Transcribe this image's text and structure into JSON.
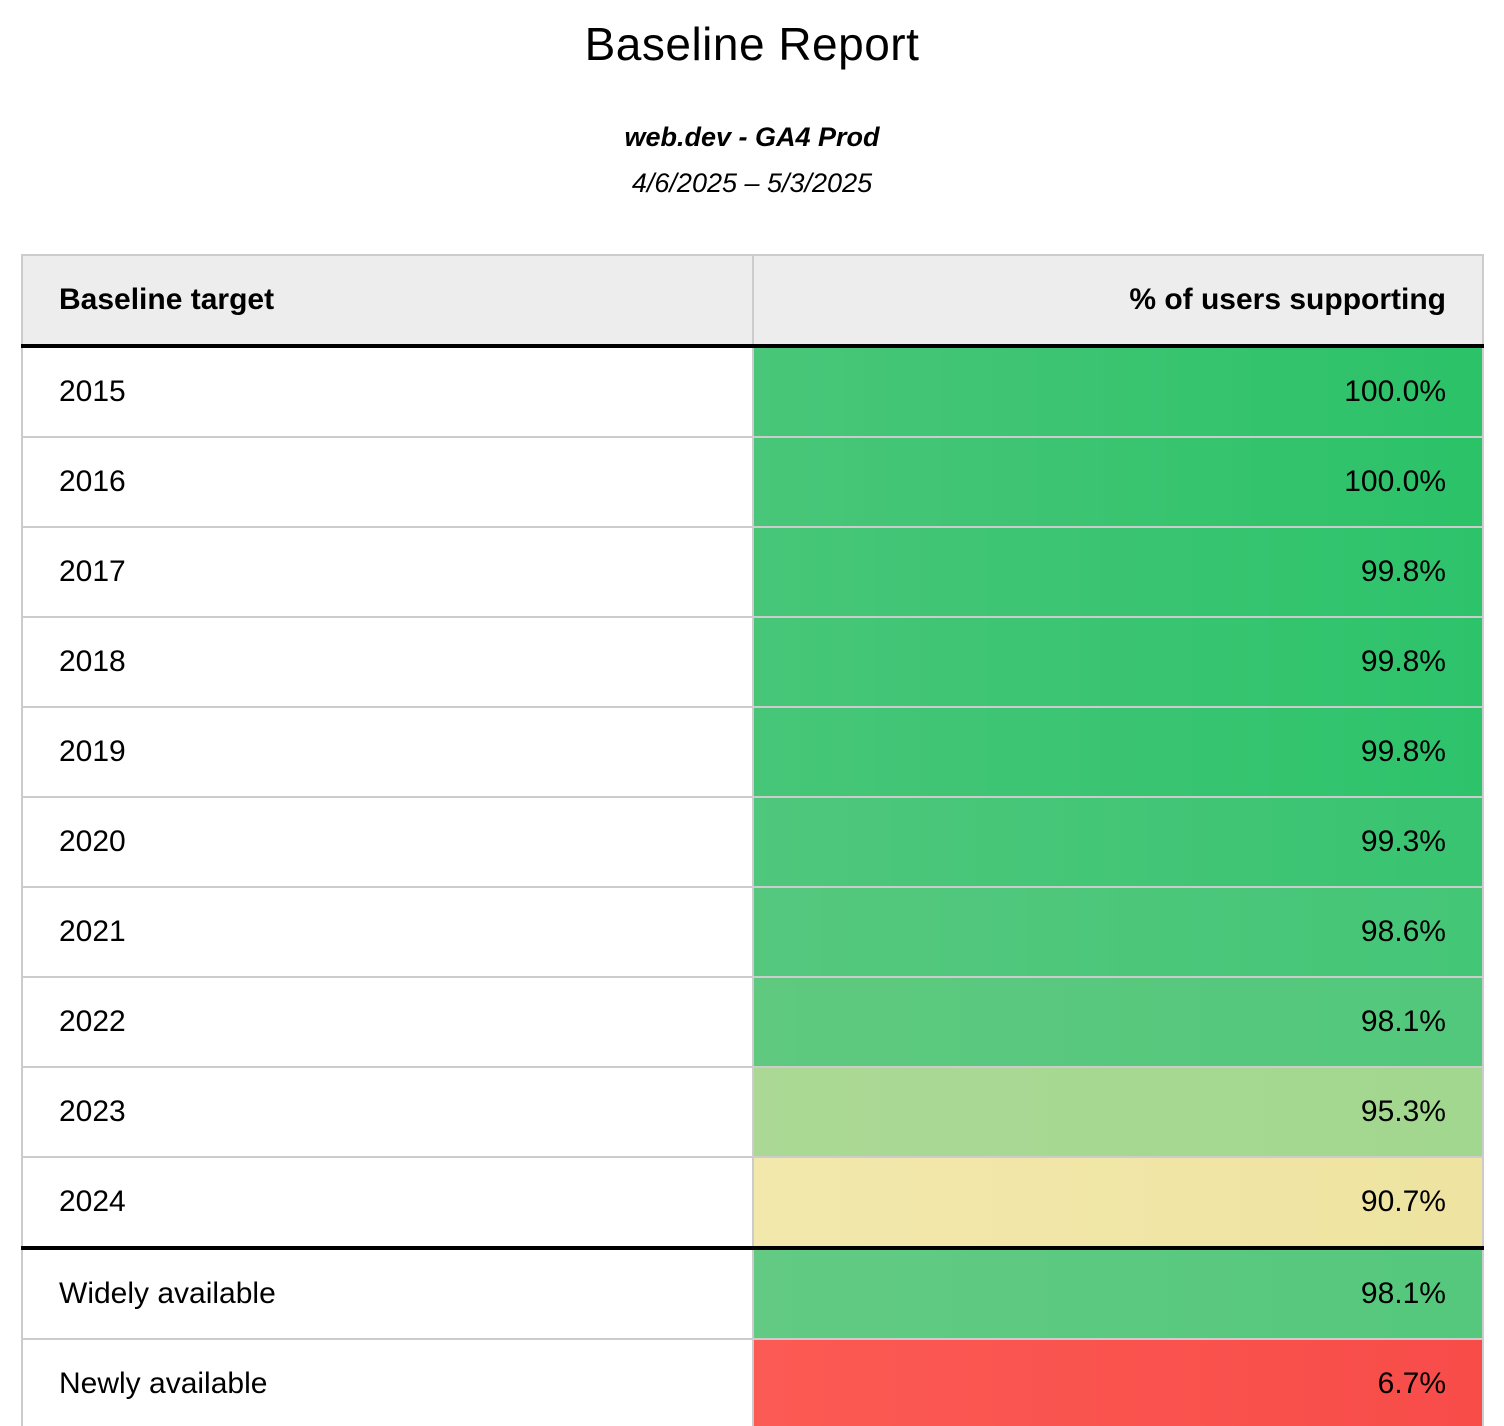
{
  "page": {
    "title": "Baseline Report",
    "subtitle": "web.dev - GA4 Prod",
    "date_range": "4/6/2025 – 5/3/2025"
  },
  "colors": {
    "header_bg": "#ededed",
    "grid_border": "#cccccc",
    "strong_border": "#000000",
    "text": "#000000"
  },
  "table": {
    "columns": [
      {
        "label": "Baseline target"
      },
      {
        "label": "% of users supporting"
      }
    ],
    "rows": [
      {
        "label": "2015",
        "value": "100.0%",
        "color_left": "#49c679",
        "color_right": "#2bc268",
        "thick_top_border": false
      },
      {
        "label": "2016",
        "value": "100.0%",
        "color_left": "#49c679",
        "color_right": "#2bc268",
        "thick_top_border": false
      },
      {
        "label": "2017",
        "value": "99.8%",
        "color_left": "#47c678",
        "color_right": "#2dc36b",
        "thick_top_border": false
      },
      {
        "label": "2018",
        "value": "99.8%",
        "color_left": "#47c678",
        "color_right": "#2dc36b",
        "thick_top_border": false
      },
      {
        "label": "2019",
        "value": "99.8%",
        "color_left": "#47c678",
        "color_right": "#2dc36b",
        "thick_top_border": false
      },
      {
        "label": "2020",
        "value": "99.3%",
        "color_left": "#4fc77c",
        "color_right": "#38c471",
        "thick_top_border": false
      },
      {
        "label": "2021",
        "value": "98.6%",
        "color_left": "#55c87e",
        "color_right": "#44c677",
        "thick_top_border": false
      },
      {
        "label": "2022",
        "value": "98.1%",
        "color_left": "#5ec97f",
        "color_right": "#52c87c",
        "thick_top_border": false
      },
      {
        "label": "2023",
        "value": "95.3%",
        "color_left": "#abd995",
        "color_right": "#a2d78f",
        "thick_top_border": false
      },
      {
        "label": "2024",
        "value": "90.7%",
        "color_left": "#f3e8ac",
        "color_right": "#eee3a0",
        "thick_top_border": false
      },
      {
        "label": "Widely available",
        "value": "98.1%",
        "color_left": "#62ca83",
        "color_right": "#55c87d",
        "thick_top_border": true
      },
      {
        "label": "Newly available",
        "value": "6.7%",
        "color_left": "#fc5a54",
        "color_right": "#f84c49",
        "thick_top_border": false
      }
    ]
  },
  "chart_data": {
    "type": "table",
    "title": "Baseline Report",
    "subtitle": "web.dev - GA4 Prod",
    "date_range": "4/6/2025 – 5/3/2025",
    "columns": [
      "Baseline target",
      "% of users supporting"
    ],
    "rows": [
      [
        "2015",
        100.0
      ],
      [
        "2016",
        100.0
      ],
      [
        "2017",
        99.8
      ],
      [
        "2018",
        99.8
      ],
      [
        "2019",
        99.8
      ],
      [
        "2020",
        99.3
      ],
      [
        "2021",
        98.6
      ],
      [
        "2022",
        98.1
      ],
      [
        "2023",
        95.3
      ],
      [
        "2024",
        90.7
      ],
      [
        "Widely available",
        98.1
      ],
      [
        "Newly available",
        6.7
      ]
    ],
    "value_unit": "%",
    "color_scale": "green (high) to yellow to red (low), conditional formatting on % column"
  }
}
